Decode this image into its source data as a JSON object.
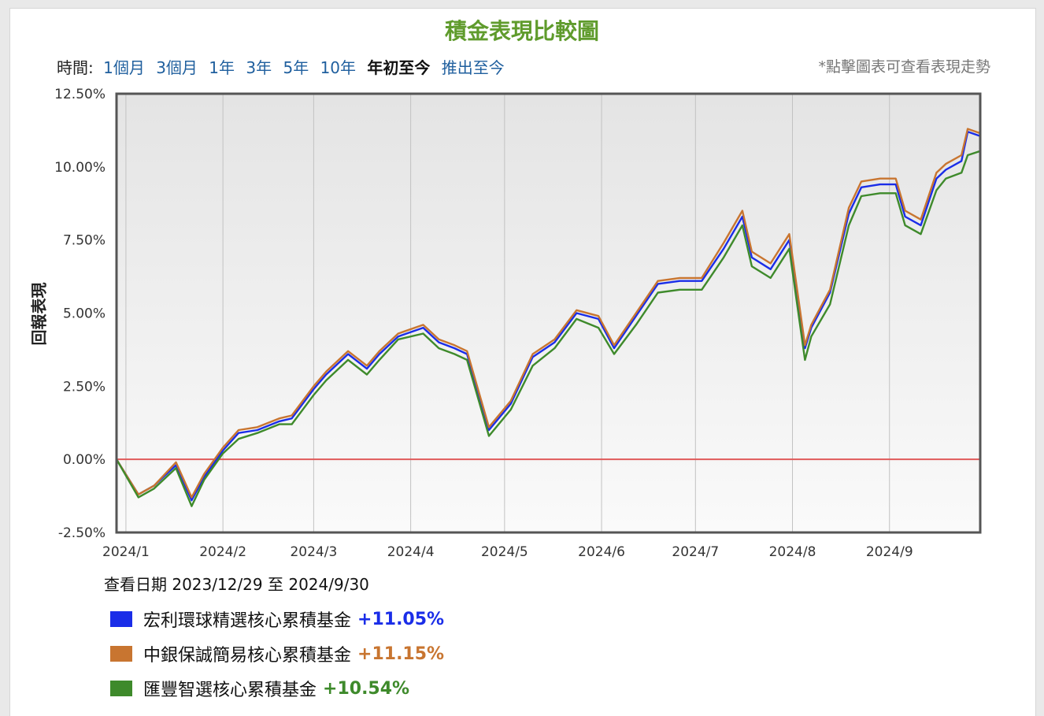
{
  "title": "積金表現比較圖",
  "time_range": {
    "label": "時間:",
    "options": [
      {
        "label": "1個月",
        "active": false
      },
      {
        "label": "3個月",
        "active": false
      },
      {
        "label": "1年",
        "active": false
      },
      {
        "label": "3年",
        "active": false
      },
      {
        "label": "5年",
        "active": false
      },
      {
        "label": "10年",
        "active": false
      },
      {
        "label": "年初至今",
        "active": true
      },
      {
        "label": "推出至今",
        "active": false
      }
    ]
  },
  "hint": "*點擊圖表可查看表現走勢",
  "date_range_text": "查看日期 2023/12/29 至 2024/9/30",
  "chart_data": {
    "type": "line",
    "ylabel": "回報表現",
    "xlabel": "",
    "ylim": [
      -2.5,
      12.5
    ],
    "xlim": [
      "2023-12-29",
      "2024-09-30"
    ],
    "yticks": [
      "-2.50%",
      "0.00%",
      "2.50%",
      "5.00%",
      "7.50%",
      "10.00%",
      "12.50%"
    ],
    "xticks": [
      "2024/1",
      "2024/2",
      "2024/3",
      "2024/4",
      "2024/5",
      "2024/6",
      "2024/7",
      "2024/8",
      "2024/9"
    ],
    "grid": true,
    "zero_line_color": "#e05a5a",
    "x": [
      "2023-12-29",
      "2024-01-05",
      "2024-01-10",
      "2024-01-17",
      "2024-01-22",
      "2024-01-26",
      "2024-02-01",
      "2024-02-06",
      "2024-02-12",
      "2024-02-19",
      "2024-02-23",
      "2024-03-01",
      "2024-03-05",
      "2024-03-12",
      "2024-03-18",
      "2024-03-22",
      "2024-03-28",
      "2024-04-05",
      "2024-04-10",
      "2024-04-15",
      "2024-04-19",
      "2024-04-26",
      "2024-05-03",
      "2024-05-10",
      "2024-05-17",
      "2024-05-24",
      "2024-05-31",
      "2024-06-05",
      "2024-06-12",
      "2024-06-19",
      "2024-06-26",
      "2024-07-03",
      "2024-07-10",
      "2024-07-16",
      "2024-07-19",
      "2024-07-25",
      "2024-07-31",
      "2024-08-05",
      "2024-08-07",
      "2024-08-13",
      "2024-08-19",
      "2024-08-23",
      "2024-08-29",
      "2024-09-03",
      "2024-09-06",
      "2024-09-11",
      "2024-09-16",
      "2024-09-19",
      "2024-09-24",
      "2024-09-26",
      "2024-09-30"
    ],
    "series": [
      {
        "name": "宏利環球精選核心累積基金",
        "color": "#1a2de8",
        "values": [
          0,
          -1.2,
          -0.9,
          -0.2,
          -1.4,
          -0.6,
          0.3,
          0.9,
          1.0,
          1.3,
          1.4,
          2.4,
          2.9,
          3.6,
          3.1,
          3.6,
          4.2,
          4.5,
          4.0,
          3.8,
          3.6,
          1.0,
          1.9,
          3.5,
          4.0,
          5.0,
          4.8,
          3.8,
          4.9,
          6.0,
          6.1,
          6.1,
          7.2,
          8.3,
          6.9,
          6.5,
          7.5,
          3.8,
          4.5,
          5.7,
          8.4,
          9.3,
          9.4,
          9.4,
          8.3,
          8.0,
          9.6,
          9.9,
          10.2,
          11.2,
          11.05
        ]
      },
      {
        "name": "中銀保誠簡易核心累積基金",
        "color": "#c87530",
        "values": [
          0,
          -1.2,
          -0.9,
          -0.1,
          -1.3,
          -0.5,
          0.4,
          1.0,
          1.1,
          1.4,
          1.5,
          2.5,
          3.0,
          3.7,
          3.2,
          3.7,
          4.3,
          4.6,
          4.1,
          3.9,
          3.7,
          1.1,
          2.0,
          3.6,
          4.1,
          5.1,
          4.9,
          3.9,
          5.0,
          6.1,
          6.2,
          6.2,
          7.4,
          8.5,
          7.1,
          6.7,
          7.7,
          3.9,
          4.6,
          5.8,
          8.6,
          9.5,
          9.6,
          9.6,
          8.5,
          8.2,
          9.8,
          10.1,
          10.4,
          11.3,
          11.15
        ]
      },
      {
        "name": "匯豐智選核心累積基金",
        "color": "#3e8a2b",
        "values": [
          0,
          -1.3,
          -1.0,
          -0.3,
          -1.6,
          -0.7,
          0.2,
          0.7,
          0.9,
          1.2,
          1.2,
          2.2,
          2.7,
          3.4,
          2.9,
          3.4,
          4.1,
          4.3,
          3.8,
          3.6,
          3.4,
          0.8,
          1.7,
          3.2,
          3.8,
          4.8,
          4.5,
          3.6,
          4.6,
          5.7,
          5.8,
          5.8,
          6.9,
          8.0,
          6.6,
          6.2,
          7.2,
          3.4,
          4.2,
          5.3,
          8.0,
          9.0,
          9.1,
          9.1,
          8.0,
          7.7,
          9.2,
          9.6,
          9.8,
          10.4,
          10.54
        ]
      }
    ]
  },
  "legend": [
    {
      "name": "宏利環球精選核心累積基金",
      "value": "+11.05%",
      "color": "#1a2de8"
    },
    {
      "name": "中銀保誠簡易核心累積基金",
      "value": "+11.15%",
      "color": "#c87530"
    },
    {
      "name": "匯豐智選核心累積基金",
      "value": "+10.54%",
      "color": "#3e8a2b"
    }
  ]
}
